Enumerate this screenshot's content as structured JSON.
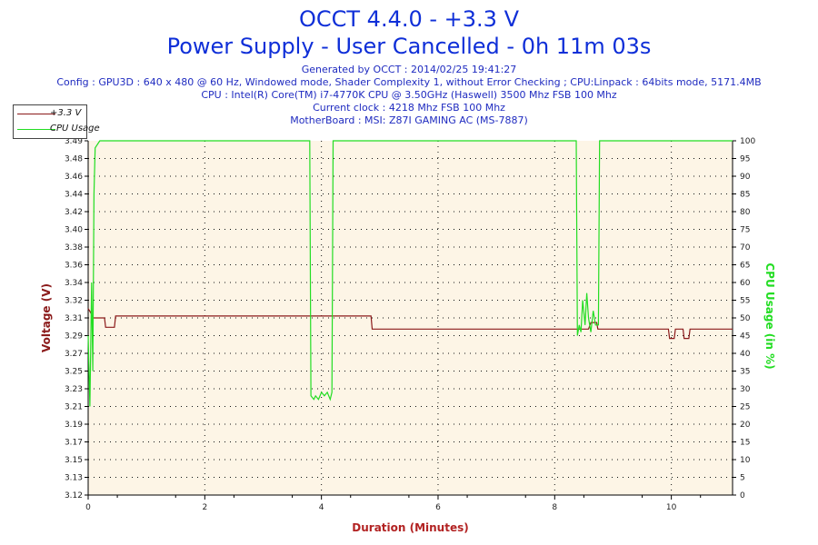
{
  "title": "OCCT 4.4.0 - +3.3 V",
  "subtitle": "Power Supply - User Cancelled - 0h 11m 03s",
  "info": {
    "generated": "Generated by OCCT : 2014/02/25 19:41:27",
    "config": "Config : GPU3D : 640 x 480 @ 60 Hz, Windowed mode, Shader Complexity 1, without Error Checking ; CPU:Linpack : 64bits mode, 5171.4MB",
    "cpu": "CPU : Intel(R) Core(TM) i7-4770K CPU @ 3.50GHz (Haswell) 3500 Mhz FSB 100 Mhz",
    "clock": "Current clock : 4218 Mhz FSB 100 Mhz",
    "motherboard": "MotherBoard : MSI: Z87I GAMING AC (MS-7887)"
  },
  "colors": {
    "voltage": "#8b1a1a",
    "cpu": "#22dd22",
    "plot_bg": "#fdf5e6",
    "grid": "#111111",
    "title": "#0f2fd8",
    "xlabel": "#b22222"
  },
  "chart_data": {
    "type": "line",
    "xlabel": "Duration (Minutes)",
    "ylabel_left": "Voltage (V)",
    "ylabel_right": "CPU Usage (in %)",
    "xlim": [
      0,
      11.05
    ],
    "ylim_left": [
      3.12,
      3.5
    ],
    "ylim_right": [
      0,
      100
    ],
    "x_ticks": [
      0,
      2,
      4,
      6,
      8,
      10
    ],
    "y_ticks_left": [
      "3.12",
      "3.13",
      "3.15",
      "3.17",
      "3.19",
      "3.21",
      "3.23",
      "3.25",
      "3.27",
      "3.29",
      "3.31",
      "3.32",
      "3.34",
      "3.36",
      "3.38",
      "3.40",
      "3.42",
      "3.44",
      "3.46",
      "3.48",
      "3.49"
    ],
    "y_ticks_right": [
      0,
      5,
      10,
      15,
      20,
      25,
      30,
      35,
      40,
      45,
      50,
      55,
      60,
      65,
      70,
      75,
      80,
      85,
      90,
      95,
      100
    ],
    "grid": true,
    "legend": "top-left",
    "series": [
      {
        "name": "+3.3 V",
        "axis": "left",
        "x": [
          0,
          0.05,
          0.08,
          0.12,
          0.28,
          0.3,
          0.45,
          0.47,
          4.85,
          4.87,
          8.58,
          8.62,
          8.72,
          8.74,
          9.95,
          9.97,
          10.05,
          10.07,
          10.2,
          10.22,
          10.3,
          10.32,
          11.05
        ],
        "values": [
          3.32,
          3.315,
          3.31,
          3.31,
          3.31,
          3.3,
          3.3,
          3.312,
          3.312,
          3.298,
          3.298,
          3.305,
          3.305,
          3.298,
          3.298,
          3.288,
          3.288,
          3.298,
          3.298,
          3.288,
          3.288,
          3.298,
          3.298
        ]
      },
      {
        "name": "CPU Usage",
        "axis": "right",
        "x": [
          0,
          0.03,
          0.06,
          0.08,
          0.1,
          0.12,
          0.2,
          3.8,
          3.82,
          3.87,
          3.9,
          3.95,
          4.0,
          4.05,
          4.1,
          4.15,
          4.18,
          4.2,
          8.37,
          8.39,
          8.42,
          8.45,
          8.48,
          8.52,
          8.55,
          8.58,
          8.62,
          8.66,
          8.7,
          8.75,
          8.77,
          11.05
        ],
        "values": [
          45,
          25,
          60,
          35,
          85,
          98,
          100,
          100,
          28,
          27,
          28,
          27,
          29,
          28,
          29,
          27,
          29,
          100,
          100,
          45,
          48,
          46,
          55,
          48,
          57,
          50,
          46,
          52,
          48,
          48,
          100,
          100
        ]
      }
    ]
  }
}
